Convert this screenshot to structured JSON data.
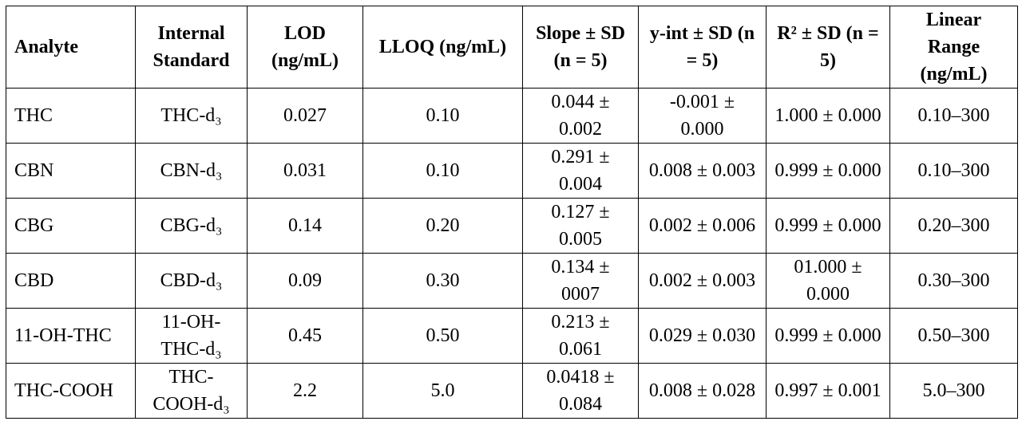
{
  "table": {
    "header": [
      "Analyte",
      "Internal Standard",
      "LOD (ng/mL)",
      "LLOQ (ng/mL)",
      "Slope ± SD (n = 5)",
      "y-int ± SD (n = 5)",
      "R² ± SD (n = 5)",
      "Linear Range (ng/mL)"
    ],
    "rows": [
      [
        "THC",
        "THC-d₃",
        "0.027",
        "0.10",
        "0.044 ± 0.002",
        "-0.001 ± 0.000",
        "1.000 ± 0.000",
        "0.10–300"
      ],
      [
        "CBN",
        "CBN-d₃",
        "0.031",
        "0.10",
        "0.291 ± 0.004",
        "0.008 ± 0.003",
        "0.999 ± 0.000",
        "0.10–300"
      ],
      [
        "CBG",
        "CBG-d₃",
        "0.14",
        "0.20",
        "0.127 ± 0.005",
        "0.002 ± 0.006",
        "0.999 ± 0.000",
        "0.20–300"
      ],
      [
        "CBD",
        "CBD-d₃",
        "0.09",
        "0.30",
        "0.134 ± 0007",
        "0.002 ± 0.003",
        "01.000 ± 0.000",
        "0.30–300"
      ],
      [
        "11-OH-THC",
        "11-OH-THC-d₃",
        "0.45",
        "0.50",
        "0.213 ± 0.061",
        "0.029 ± 0.030",
        "0.999 ± 0.000",
        "0.50–300"
      ],
      [
        "THC-COOH",
        "THC-COOH-d₃",
        "2.2",
        "5.0",
        "0.0418 ± 0.084",
        "0.008 ± 0.028",
        "0.997 ± 0.001",
        "5.0–300"
      ]
    ]
  }
}
